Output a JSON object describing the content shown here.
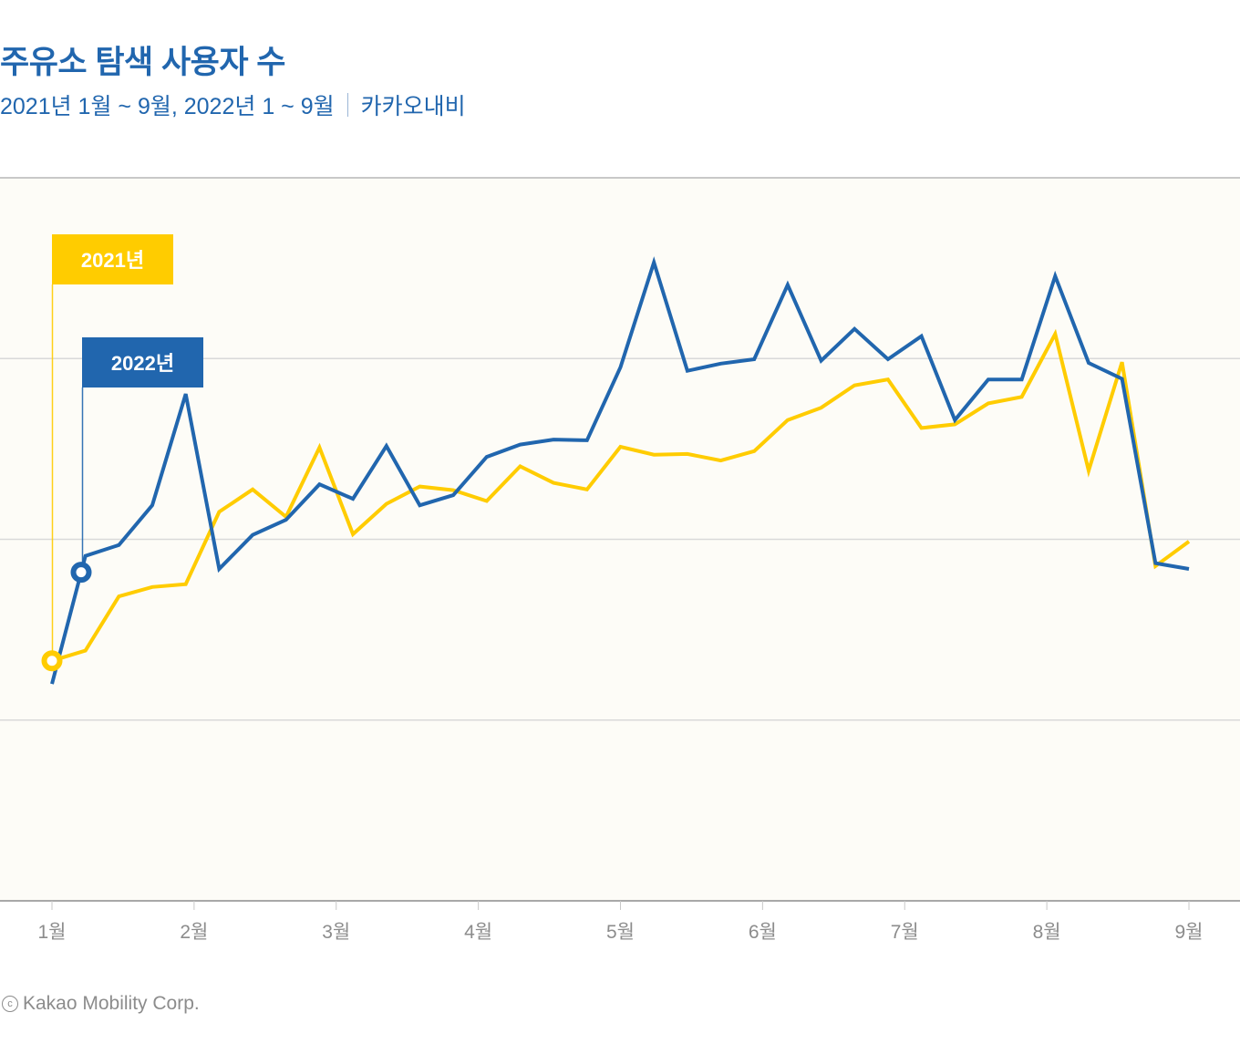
{
  "header": {
    "title": "주유소 탐색 사용자 수",
    "subtitle_period": "2021년 1월 ~ 9월, 2022년 1 ~ 9월",
    "subtitle_source": "카카오내비"
  },
  "footer": {
    "copyright_icon": "copyright-icon",
    "copyright_text": "Kakao Mobility Corp."
  },
  "colors": {
    "series_2021": "#ffcc00",
    "series_2022": "#2166ae",
    "plot_background": "#fdfcf7",
    "gridline": "#d9d9d9",
    "axis_label": "#8c8c8c"
  },
  "chart_data": {
    "type": "line",
    "title": "주유소 탐색 사용자 수",
    "subtitle": "2021년 1월 ~ 9월, 2022년 1 ~ 9월 | 카카오내비",
    "xlabel": "",
    "ylabel": "",
    "y_units": "relative index (no y-axis labels shown)",
    "ylim": [
      0,
      100
    ],
    "ygrid": [
      25,
      50,
      75,
      100
    ],
    "grid": true,
    "x_tick_labels": [
      "1월",
      "2월",
      "3월",
      "4월",
      "5월",
      "6월",
      "7월",
      "8월",
      "9월"
    ],
    "x_range_months": [
      1,
      9
    ],
    "points_per_series": 35,
    "legend_style": "flag annotations at series start",
    "series": [
      {
        "name": "2021년",
        "color": "#ffcc00",
        "values": [
          33.2,
          34.6,
          42.1,
          43.4,
          43.8,
          53.8,
          56.9,
          53.1,
          62.7,
          50.7,
          54.9,
          57.3,
          56.8,
          55.3,
          60.1,
          57.8,
          56.9,
          62.8,
          61.7,
          61.8,
          60.9,
          62.2,
          66.5,
          68.2,
          71.3,
          72.1,
          65.4,
          65.9,
          68.8,
          69.7,
          78.4,
          59.5,
          74.5,
          46.3,
          49.7
        ],
        "marker_index": 0
      },
      {
        "name": "2022년",
        "color": "#2166ae",
        "values": [
          30.0,
          47.7,
          49.2,
          54.7,
          70.1,
          45.9,
          50.6,
          52.7,
          57.6,
          55.6,
          62.9,
          54.7,
          56.1,
          61.4,
          63.1,
          63.8,
          63.7,
          73.8,
          88.3,
          73.3,
          74.3,
          74.9,
          85.2,
          74.7,
          79.1,
          74.9,
          78.1,
          66.5,
          72.1,
          72.1,
          86.4,
          74.4,
          72.2,
          46.7,
          45.9
        ],
        "marker_index": 1
      }
    ]
  }
}
